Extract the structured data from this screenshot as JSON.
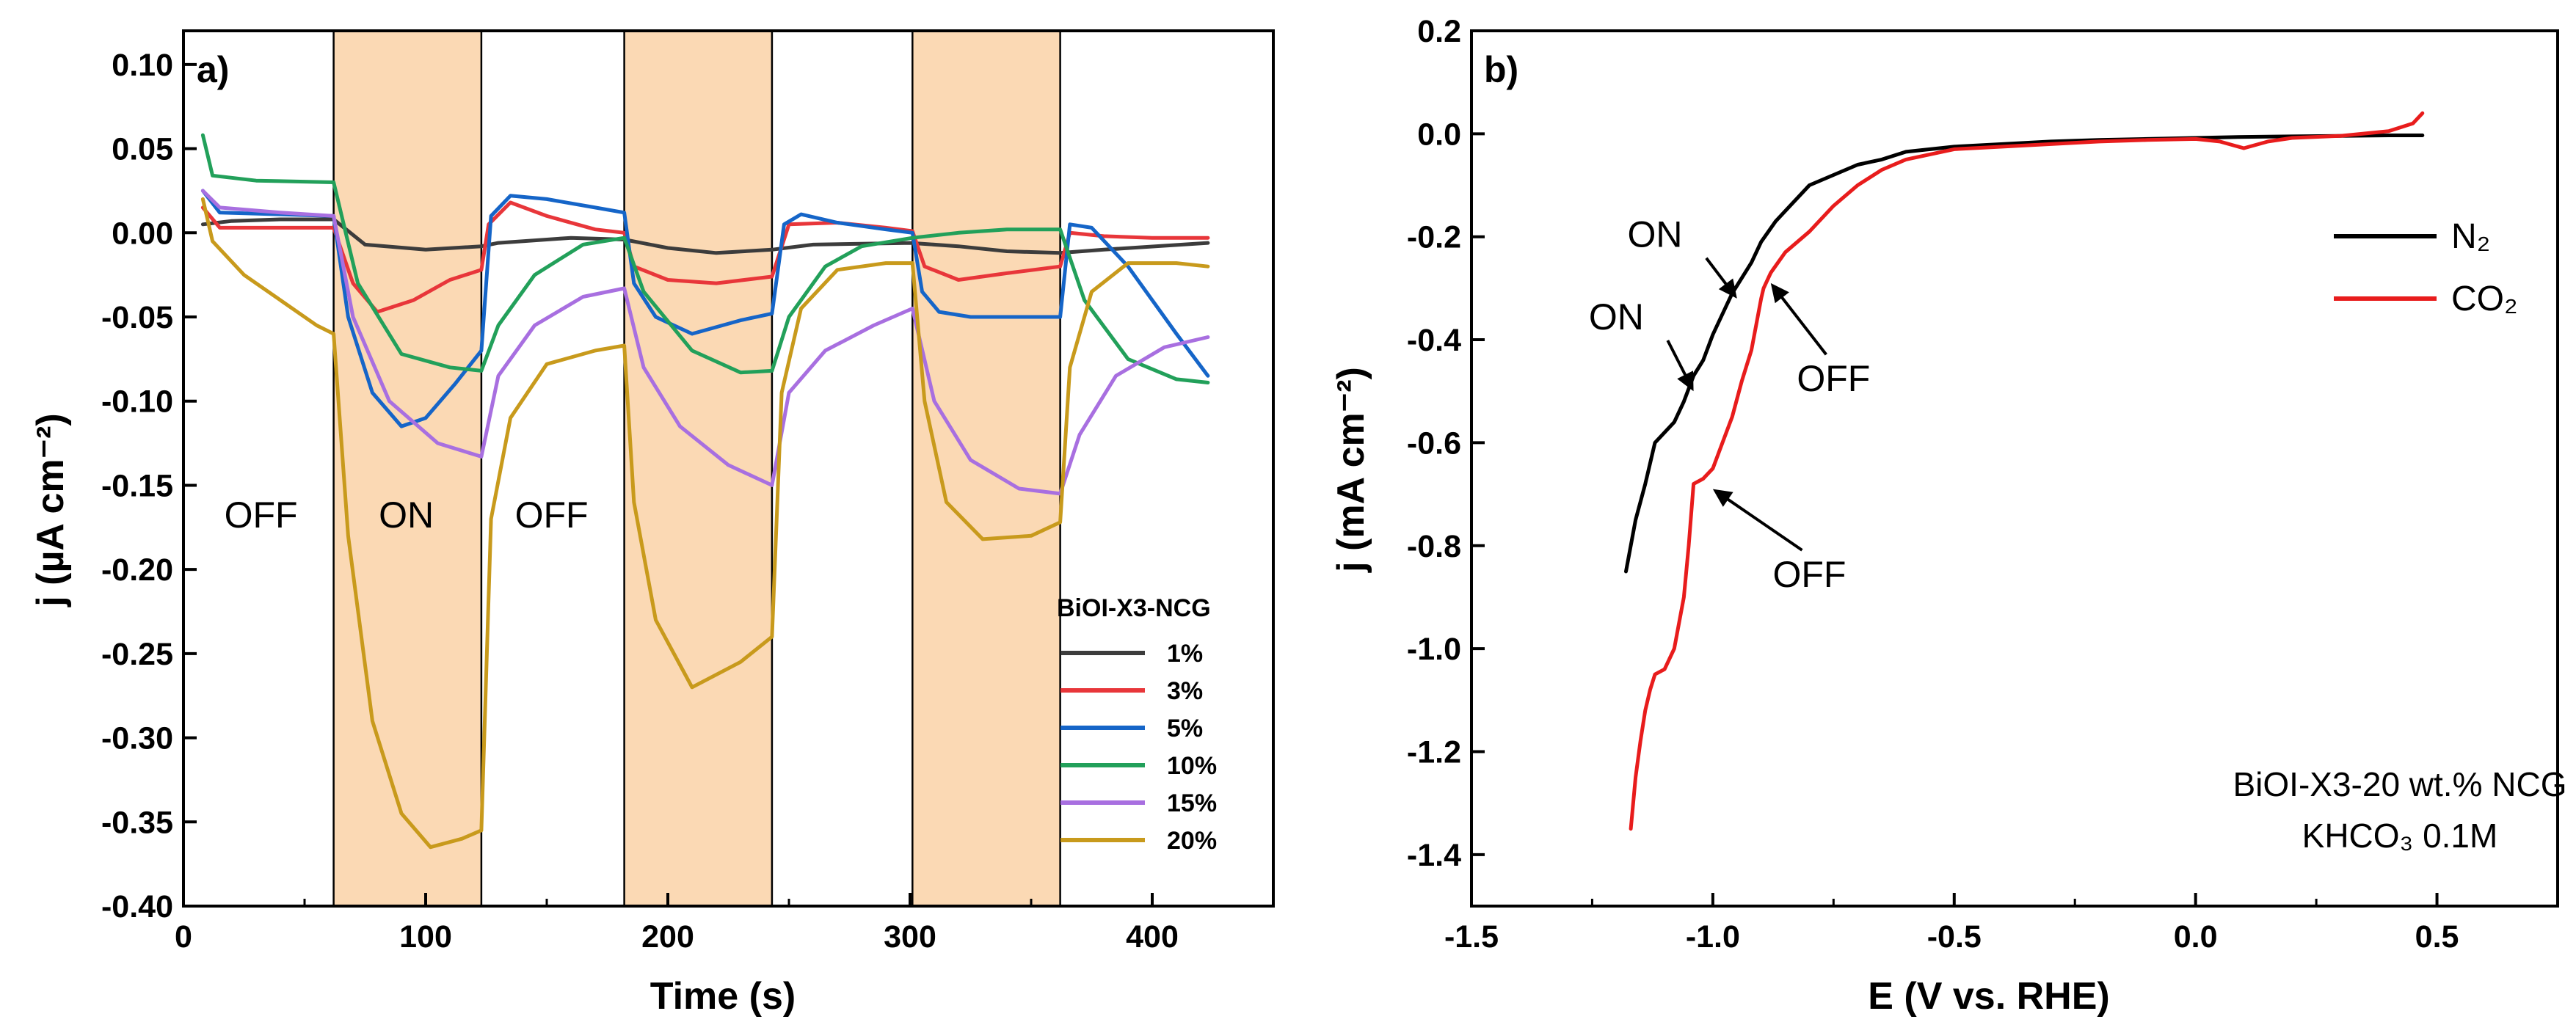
{
  "chart_data": [
    {
      "panel": "a)",
      "type": "line",
      "xlabel": "Time (s)",
      "ylabel": "j (µA cm⁻²)",
      "xlim": [
        0,
        450
      ],
      "ylim": [
        -0.4,
        0.12
      ],
      "xticks": [
        0,
        100,
        200,
        300,
        400
      ],
      "xtick_labels": [
        "0",
        "100",
        "200",
        "300",
        "400"
      ],
      "yticks": [
        0.1,
        0.05,
        0.0,
        -0.05,
        -0.1,
        -0.15,
        -0.2,
        -0.25,
        -0.3,
        -0.35,
        -0.4
      ],
      "ytick_labels": [
        "0.10",
        "0.05",
        "0.00",
        "-0.05",
        "-0.10",
        "-0.15",
        "-0.20",
        "-0.25",
        "-0.30",
        "-0.35",
        "-0.40"
      ],
      "on_regions": [
        [
          62,
          123
        ],
        [
          182,
          243
        ],
        [
          301,
          362
        ]
      ],
      "annotations": [
        {
          "text": "OFF",
          "x": 32,
          "y": -0.175
        },
        {
          "text": "ON",
          "x": 92,
          "y": -0.175
        },
        {
          "text": "OFF",
          "x": 152,
          "y": -0.175
        }
      ],
      "legend_title": "BiOI-X3-NCG",
      "series": [
        {
          "name": "1%",
          "color": "#3c3c3c",
          "x": [
            8,
            20,
            40,
            62,
            75,
            100,
            123,
            130,
            160,
            182,
            200,
            220,
            243,
            260,
            300,
            320,
            340,
            362,
            380,
            423
          ],
          "y": [
            0.005,
            0.007,
            0.008,
            0.008,
            -0.007,
            -0.01,
            -0.008,
            -0.006,
            -0.003,
            -0.004,
            -0.009,
            -0.012,
            -0.01,
            -0.007,
            -0.006,
            -0.008,
            -0.011,
            -0.012,
            -0.01,
            -0.006
          ]
        },
        {
          "name": "3%",
          "color": "#e8363a",
          "x": [
            8,
            15,
            40,
            62,
            70,
            80,
            95,
            110,
            123,
            126,
            135,
            150,
            170,
            182,
            186,
            200,
            220,
            243,
            250,
            270,
            290,
            301,
            306,
            320,
            340,
            362,
            366,
            380,
            400,
            423
          ],
          "y": [
            0.015,
            0.003,
            0.003,
            0.003,
            -0.03,
            -0.047,
            -0.04,
            -0.028,
            -0.022,
            0.005,
            0.018,
            0.01,
            0.002,
            0.0,
            -0.02,
            -0.028,
            -0.03,
            -0.026,
            0.005,
            0.006,
            0.003,
            0.001,
            -0.02,
            -0.028,
            -0.024,
            -0.02,
            0.0,
            -0.002,
            -0.003,
            -0.003
          ]
        },
        {
          "name": "5%",
          "color": "#1565c8",
          "x": [
            8,
            15,
            40,
            62,
            68,
            78,
            90,
            100,
            112,
            123,
            127,
            135,
            150,
            170,
            182,
            186,
            195,
            210,
            230,
            243,
            248,
            255,
            270,
            290,
            301,
            305,
            312,
            325,
            340,
            362,
            366,
            375,
            390,
            410,
            423
          ],
          "y": [
            0.025,
            0.012,
            0.011,
            0.01,
            -0.05,
            -0.095,
            -0.115,
            -0.11,
            -0.09,
            -0.07,
            0.01,
            0.022,
            0.02,
            0.015,
            0.012,
            -0.03,
            -0.05,
            -0.06,
            -0.052,
            -0.048,
            0.005,
            0.011,
            0.006,
            0.002,
            0.0,
            -0.035,
            -0.047,
            -0.05,
            -0.05,
            -0.05,
            0.005,
            0.003,
            -0.02,
            -0.06,
            -0.085
          ]
        },
        {
          "name": "10%",
          "color": "#22a05a",
          "x": [
            8,
            12,
            30,
            62,
            72,
            90,
            110,
            123,
            130,
            145,
            165,
            182,
            190,
            210,
            230,
            243,
            250,
            265,
            280,
            301,
            320,
            340,
            362,
            372,
            390,
            410,
            423
          ],
          "y": [
            0.058,
            0.034,
            0.031,
            0.03,
            -0.03,
            -0.072,
            -0.08,
            -0.082,
            -0.055,
            -0.025,
            -0.007,
            -0.003,
            -0.035,
            -0.07,
            -0.083,
            -0.082,
            -0.05,
            -0.02,
            -0.008,
            -0.003,
            0.0,
            0.002,
            0.002,
            -0.04,
            -0.075,
            -0.087,
            -0.089
          ]
        },
        {
          "name": "15%",
          "color": "#a86fe0",
          "x": [
            8,
            15,
            40,
            62,
            70,
            85,
            105,
            123,
            130,
            145,
            165,
            182,
            190,
            205,
            225,
            243,
            250,
            265,
            285,
            301,
            310,
            325,
            345,
            362,
            370,
            385,
            405,
            423
          ],
          "y": [
            0.025,
            0.015,
            0.012,
            0.01,
            -0.05,
            -0.1,
            -0.125,
            -0.133,
            -0.085,
            -0.055,
            -0.038,
            -0.033,
            -0.08,
            -0.115,
            -0.138,
            -0.15,
            -0.095,
            -0.07,
            -0.055,
            -0.045,
            -0.1,
            -0.135,
            -0.152,
            -0.155,
            -0.12,
            -0.085,
            -0.068,
            -0.062
          ]
        },
        {
          "name": "20%",
          "color": "#c89a1c",
          "x": [
            8,
            12,
            25,
            40,
            55,
            62,
            68,
            78,
            90,
            102,
            115,
            123,
            127,
            135,
            150,
            170,
            182,
            186,
            195,
            210,
            230,
            243,
            247,
            255,
            270,
            290,
            301,
            306,
            315,
            330,
            350,
            362,
            366,
            375,
            390,
            410,
            423
          ],
          "y": [
            0.02,
            -0.005,
            -0.025,
            -0.04,
            -0.055,
            -0.06,
            -0.18,
            -0.29,
            -0.345,
            -0.365,
            -0.36,
            -0.355,
            -0.17,
            -0.11,
            -0.078,
            -0.07,
            -0.067,
            -0.16,
            -0.23,
            -0.27,
            -0.255,
            -0.24,
            -0.095,
            -0.045,
            -0.022,
            -0.018,
            -0.018,
            -0.1,
            -0.16,
            -0.182,
            -0.18,
            -0.172,
            -0.08,
            -0.035,
            -0.018,
            -0.018,
            -0.02
          ]
        }
      ]
    },
    {
      "panel": "b)",
      "type": "line",
      "xlabel": "E (V vs. RHE)",
      "ylabel": "j (mA cm⁻²)",
      "xlim": [
        -1.5,
        0.75
      ],
      "ylim": [
        -1.5,
        0.2
      ],
      "xticks": [
        -1.5,
        -1.0,
        -0.5,
        0.0,
        0.5
      ],
      "xtick_labels": [
        "-1.5",
        "-1.0",
        "-0.5",
        "0.0",
        "0.5"
      ],
      "yticks": [
        0.2,
        0.0,
        -0.2,
        -0.4,
        -0.6,
        -0.8,
        -1.0,
        -1.2,
        -1.4
      ],
      "ytick_labels": [
        "0.2",
        "0.0",
        "-0.2",
        "-0.4",
        "-0.6",
        "-0.8",
        "-1.0",
        "-1.2",
        "-1.4"
      ],
      "annotations": [
        {
          "text": "ON",
          "x": -1.12,
          "y": -0.22,
          "arrow_to": [
            -0.95,
            -0.32
          ]
        },
        {
          "text": "ON",
          "x": -1.2,
          "y": -0.38,
          "arrow_to": [
            -1.04,
            -0.5
          ]
        },
        {
          "text": "OFF",
          "x": -0.75,
          "y": -0.5,
          "arrow_to": [
            -0.88,
            -0.29
          ]
        },
        {
          "text": "OFF",
          "x": -0.8,
          "y": -0.88,
          "arrow_to": [
            -1.0,
            -0.69
          ]
        }
      ],
      "sample_text": [
        "BiOI-X3-20 wt.% NCG",
        "KHCO₃ 0.1M"
      ],
      "series": [
        {
          "name": "N₂",
          "color": "#000000",
          "x": [
            -1.18,
            -1.16,
            -1.14,
            -1.12,
            -1.1,
            -1.08,
            -1.06,
            -1.04,
            -1.02,
            -1.0,
            -0.98,
            -0.96,
            -0.94,
            -0.92,
            -0.9,
            -0.87,
            -0.84,
            -0.8,
            -0.75,
            -0.7,
            -0.65,
            -0.6,
            -0.5,
            -0.4,
            -0.3,
            -0.2,
            -0.1,
            0.0,
            0.1,
            0.2,
            0.3,
            0.4,
            0.47
          ],
          "y": [
            -0.85,
            -0.75,
            -0.68,
            -0.6,
            -0.58,
            -0.56,
            -0.52,
            -0.47,
            -0.44,
            -0.39,
            -0.35,
            -0.31,
            -0.28,
            -0.25,
            -0.21,
            -0.17,
            -0.14,
            -0.1,
            -0.08,
            -0.06,
            -0.05,
            -0.035,
            -0.025,
            -0.02,
            -0.015,
            -0.012,
            -0.01,
            -0.008,
            -0.006,
            -0.005,
            -0.004,
            -0.003,
            -0.003
          ]
        },
        {
          "name": "CO₂",
          "color": "#e81c1c",
          "x": [
            -1.17,
            -1.16,
            -1.15,
            -1.14,
            -1.13,
            -1.12,
            -1.1,
            -1.08,
            -1.06,
            -1.05,
            -1.04,
            -1.02,
            -1.0,
            -0.98,
            -0.96,
            -0.94,
            -0.92,
            -0.9,
            -0.895,
            -0.88,
            -0.85,
            -0.8,
            -0.75,
            -0.7,
            -0.65,
            -0.6,
            -0.5,
            -0.4,
            -0.3,
            -0.2,
            -0.1,
            0.0,
            0.05,
            0.1,
            0.15,
            0.2,
            0.3,
            0.4,
            0.45,
            0.47
          ],
          "y": [
            -1.35,
            -1.25,
            -1.18,
            -1.12,
            -1.08,
            -1.05,
            -1.04,
            -1.0,
            -0.9,
            -0.8,
            -0.68,
            -0.67,
            -0.65,
            -0.6,
            -0.55,
            -0.48,
            -0.42,
            -0.32,
            -0.3,
            -0.27,
            -0.23,
            -0.19,
            -0.14,
            -0.1,
            -0.07,
            -0.05,
            -0.03,
            -0.025,
            -0.02,
            -0.015,
            -0.012,
            -0.01,
            -0.015,
            -0.028,
            -0.015,
            -0.008,
            -0.004,
            0.005,
            0.02,
            0.04
          ]
        }
      ]
    }
  ]
}
